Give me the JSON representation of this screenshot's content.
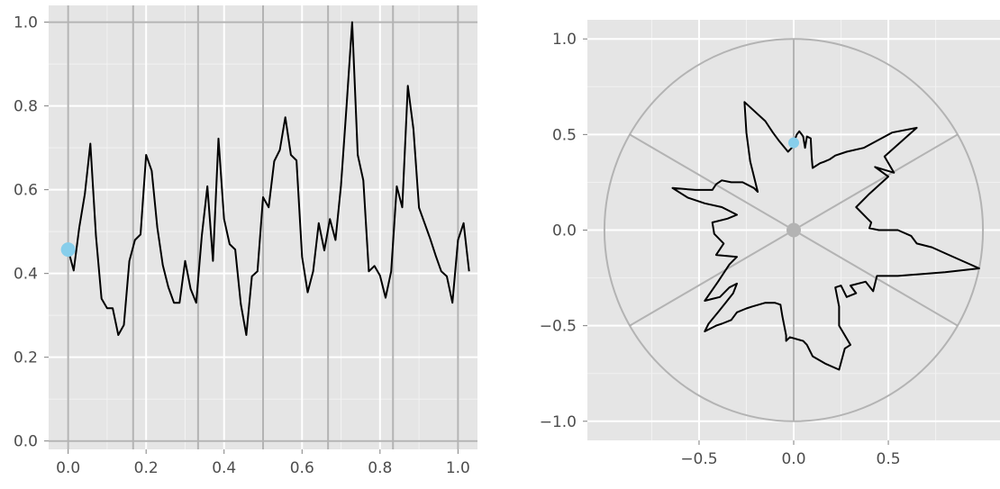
{
  "chart_data": [
    {
      "type": "line",
      "title": "",
      "xlabel": "",
      "ylabel": "",
      "xlim": [
        -0.05,
        1.05
      ],
      "ylim": [
        -0.02,
        1.04
      ],
      "xticks": [
        0,
        0.2,
        0.4,
        0.6,
        0.8,
        1
      ],
      "xtick_labels": [
        "0.0",
        "0.2",
        "0.4",
        "0.6",
        "0.8",
        "1.0"
      ],
      "yticks": [
        0,
        0.2,
        0.4,
        0.6,
        0.8,
        1
      ],
      "ytick_labels": [
        "0.0",
        "0.2",
        "0.4",
        "0.6",
        "0.8",
        "1.0"
      ],
      "vlines": [
        0,
        0.1667,
        0.3333,
        0.5,
        0.6667,
        0.8333,
        1
      ],
      "hlines": [
        0,
        1
      ],
      "grid": true,
      "background": "#e5e5e5",
      "line_color": "#000000",
      "reference_color": "#b3b3b3",
      "highlight_point": {
        "x": 0,
        "y": 0.457,
        "color": "#87ceeb"
      },
      "series": [
        {
          "values": [
            [
              0.0,
              0.457
            ],
            [
              0.0143,
              0.407
            ],
            [
              0.0286,
              0.51
            ],
            [
              0.0429,
              0.59
            ],
            [
              0.0571,
              0.71
            ],
            [
              0.0714,
              0.49
            ],
            [
              0.0857,
              0.34
            ],
            [
              0.1,
              0.317
            ],
            [
              0.1143,
              0.317
            ],
            [
              0.1286,
              0.253
            ],
            [
              0.1429,
              0.277
            ],
            [
              0.1571,
              0.43
            ],
            [
              0.1714,
              0.48
            ],
            [
              0.1857,
              0.493
            ],
            [
              0.2,
              0.683
            ],
            [
              0.2143,
              0.645
            ],
            [
              0.2286,
              0.51
            ],
            [
              0.2429,
              0.42
            ],
            [
              0.2571,
              0.367
            ],
            [
              0.2714,
              0.33
            ],
            [
              0.2857,
              0.33
            ],
            [
              0.3,
              0.43
            ],
            [
              0.3143,
              0.363
            ],
            [
              0.3286,
              0.33
            ],
            [
              0.3429,
              0.49
            ],
            [
              0.3571,
              0.608
            ],
            [
              0.3714,
              0.43
            ],
            [
              0.3857,
              0.722
            ],
            [
              0.4,
              0.53
            ],
            [
              0.4143,
              0.47
            ],
            [
              0.4286,
              0.457
            ],
            [
              0.4429,
              0.327
            ],
            [
              0.4571,
              0.253
            ],
            [
              0.4714,
              0.393
            ],
            [
              0.4857,
              0.405
            ],
            [
              0.5,
              0.582
            ],
            [
              0.5143,
              0.558
            ],
            [
              0.5286,
              0.668
            ],
            [
              0.5429,
              0.695
            ],
            [
              0.5571,
              0.773
            ],
            [
              0.5714,
              0.683
            ],
            [
              0.5857,
              0.67
            ],
            [
              0.6,
              0.44
            ],
            [
              0.6143,
              0.355
            ],
            [
              0.6286,
              0.405
            ],
            [
              0.6429,
              0.52
            ],
            [
              0.6571,
              0.455
            ],
            [
              0.6714,
              0.53
            ],
            [
              0.6857,
              0.48
            ],
            [
              0.7,
              0.61
            ],
            [
              0.7143,
              0.8
            ],
            [
              0.7286,
              1.0
            ],
            [
              0.7429,
              0.683
            ],
            [
              0.7571,
              0.622
            ],
            [
              0.7714,
              0.405
            ],
            [
              0.7857,
              0.418
            ],
            [
              0.8,
              0.395
            ],
            [
              0.8143,
              0.342
            ],
            [
              0.8286,
              0.405
            ],
            [
              0.8429,
              0.608
            ],
            [
              0.8571,
              0.558
            ],
            [
              0.8714,
              0.848
            ],
            [
              0.8857,
              0.745
            ],
            [
              0.9,
              0.557
            ],
            [
              0.9143,
              0.52
            ],
            [
              0.9286,
              0.483
            ],
            [
              0.9429,
              0.442
            ],
            [
              0.9571,
              0.405
            ],
            [
              0.9714,
              0.393
            ],
            [
              0.9857,
              0.33
            ],
            [
              1.0,
              0.48
            ],
            [
              1.0143,
              0.52
            ],
            [
              1.0286,
              0.405
            ]
          ]
        }
      ]
    },
    {
      "type": "line",
      "title": "",
      "xlabel": "",
      "ylabel": "",
      "xlim": [
        -1.09,
        1.09
      ],
      "ylim": [
        -1.1,
        1.1
      ],
      "xticks": [
        -0.5,
        0,
        0.5
      ],
      "xtick_labels": [
        "−0.5",
        "0.0",
        "0.5"
      ],
      "yticks": [
        -1,
        -0.5,
        0,
        0.5,
        1
      ],
      "ytick_labels": [
        "−1.0",
        "−0.5",
        "0.0",
        "0.5",
        "1.0"
      ],
      "reference_circle_radius": 1,
      "spoke_angles_deg": [
        30,
        90,
        150
      ],
      "center_point": {
        "x": 0,
        "y": 0,
        "color": "#b3b3b3"
      },
      "grid": true,
      "background": "#e5e5e5",
      "line_color": "#000000",
      "reference_color": "#b3b3b3",
      "highlight_point": {
        "x": 0,
        "y": 0.457,
        "color": "#87ceeb"
      },
      "series": [
        {
          "values": [
            [
              0.0,
              0.457
            ],
            [
              0.016,
              0.5
            ],
            [
              0.03,
              0.517
            ],
            [
              0.05,
              0.49
            ],
            [
              0.06,
              0.43
            ],
            [
              0.07,
              0.49
            ],
            [
              0.09,
              0.48
            ],
            [
              0.095,
              0.38
            ],
            [
              0.1,
              0.325
            ],
            [
              0.14,
              0.35
            ],
            [
              0.16,
              0.357
            ],
            [
              0.19,
              0.37
            ],
            [
              0.22,
              0.39
            ],
            [
              0.28,
              0.41
            ],
            [
              0.37,
              0.43
            ],
            [
              0.52,
              0.51
            ],
            [
              0.65,
              0.535
            ],
            [
              0.48,
              0.385
            ],
            [
              0.53,
              0.3
            ],
            [
              0.43,
              0.33
            ],
            [
              0.5,
              0.28
            ],
            [
              0.4,
              0.19
            ],
            [
              0.33,
              0.12
            ],
            [
              0.39,
              0.06
            ],
            [
              0.41,
              0.04
            ],
            [
              0.4,
              0.01
            ],
            [
              0.45,
              0.0
            ],
            [
              0.55,
              0.0
            ],
            [
              0.62,
              -0.03
            ],
            [
              0.65,
              -0.07
            ],
            [
              0.73,
              -0.09
            ],
            [
              0.82,
              -0.13
            ],
            [
              0.98,
              -0.2
            ],
            [
              0.8,
              -0.22
            ],
            [
              0.55,
              -0.24
            ],
            [
              0.44,
              -0.24
            ],
            [
              0.42,
              -0.32
            ],
            [
              0.38,
              -0.27
            ],
            [
              0.3,
              -0.29
            ],
            [
              0.33,
              -0.33
            ],
            [
              0.28,
              -0.35
            ],
            [
              0.25,
              -0.29
            ],
            [
              0.22,
              -0.3
            ],
            [
              0.24,
              -0.4
            ],
            [
              0.24,
              -0.5
            ],
            [
              0.27,
              -0.55
            ],
            [
              0.3,
              -0.6
            ],
            [
              0.27,
              -0.62
            ],
            [
              0.24,
              -0.73
            ],
            [
              0.17,
              -0.7
            ],
            [
              0.1,
              -0.66
            ],
            [
              0.07,
              -0.6
            ],
            [
              0.05,
              -0.58
            ],
            [
              -0.02,
              -0.56
            ],
            [
              -0.04,
              -0.58
            ],
            [
              -0.04,
              -0.55
            ],
            [
              -0.06,
              -0.45
            ],
            [
              -0.07,
              -0.39
            ],
            [
              -0.1,
              -0.38
            ],
            [
              -0.15,
              -0.38
            ],
            [
              -0.22,
              -0.4
            ],
            [
              -0.25,
              -0.41
            ],
            [
              -0.3,
              -0.43
            ],
            [
              -0.33,
              -0.47
            ],
            [
              -0.38,
              -0.49
            ],
            [
              -0.41,
              -0.5
            ],
            [
              -0.43,
              -0.51
            ],
            [
              -0.47,
              -0.53
            ],
            [
              -0.45,
              -0.49
            ],
            [
              -0.4,
              -0.43
            ],
            [
              -0.36,
              -0.38
            ],
            [
              -0.32,
              -0.33
            ],
            [
              -0.3,
              -0.28
            ],
            [
              -0.34,
              -0.3
            ],
            [
              -0.37,
              -0.33
            ],
            [
              -0.39,
              -0.35
            ],
            [
              -0.43,
              -0.36
            ],
            [
              -0.47,
              -0.37
            ],
            [
              -0.4,
              -0.27
            ],
            [
              -0.34,
              -0.18
            ],
            [
              -0.3,
              -0.14
            ],
            [
              -0.41,
              -0.13
            ],
            [
              -0.37,
              -0.07
            ],
            [
              -0.42,
              -0.02
            ],
            [
              -0.43,
              0.04
            ],
            [
              -0.35,
              0.06
            ],
            [
              -0.3,
              0.08
            ],
            [
              -0.38,
              0.12
            ],
            [
              -0.47,
              0.14
            ],
            [
              -0.56,
              0.17
            ],
            [
              -0.64,
              0.22
            ],
            [
              -0.52,
              0.21
            ],
            [
              -0.43,
              0.21
            ],
            [
              -0.41,
              0.24
            ],
            [
              -0.38,
              0.26
            ],
            [
              -0.33,
              0.25
            ],
            [
              -0.27,
              0.25
            ],
            [
              -0.21,
              0.22
            ],
            [
              -0.19,
              0.2
            ],
            [
              -0.23,
              0.36
            ],
            [
              -0.25,
              0.51
            ],
            [
              -0.26,
              0.67
            ],
            [
              -0.15,
              0.57
            ],
            [
              -0.11,
              0.51
            ],
            [
              -0.08,
              0.47
            ],
            [
              -0.03,
              0.41
            ],
            [
              -0.01,
              0.43
            ],
            [
              0.0,
              0.457
            ]
          ]
        }
      ]
    }
  ]
}
